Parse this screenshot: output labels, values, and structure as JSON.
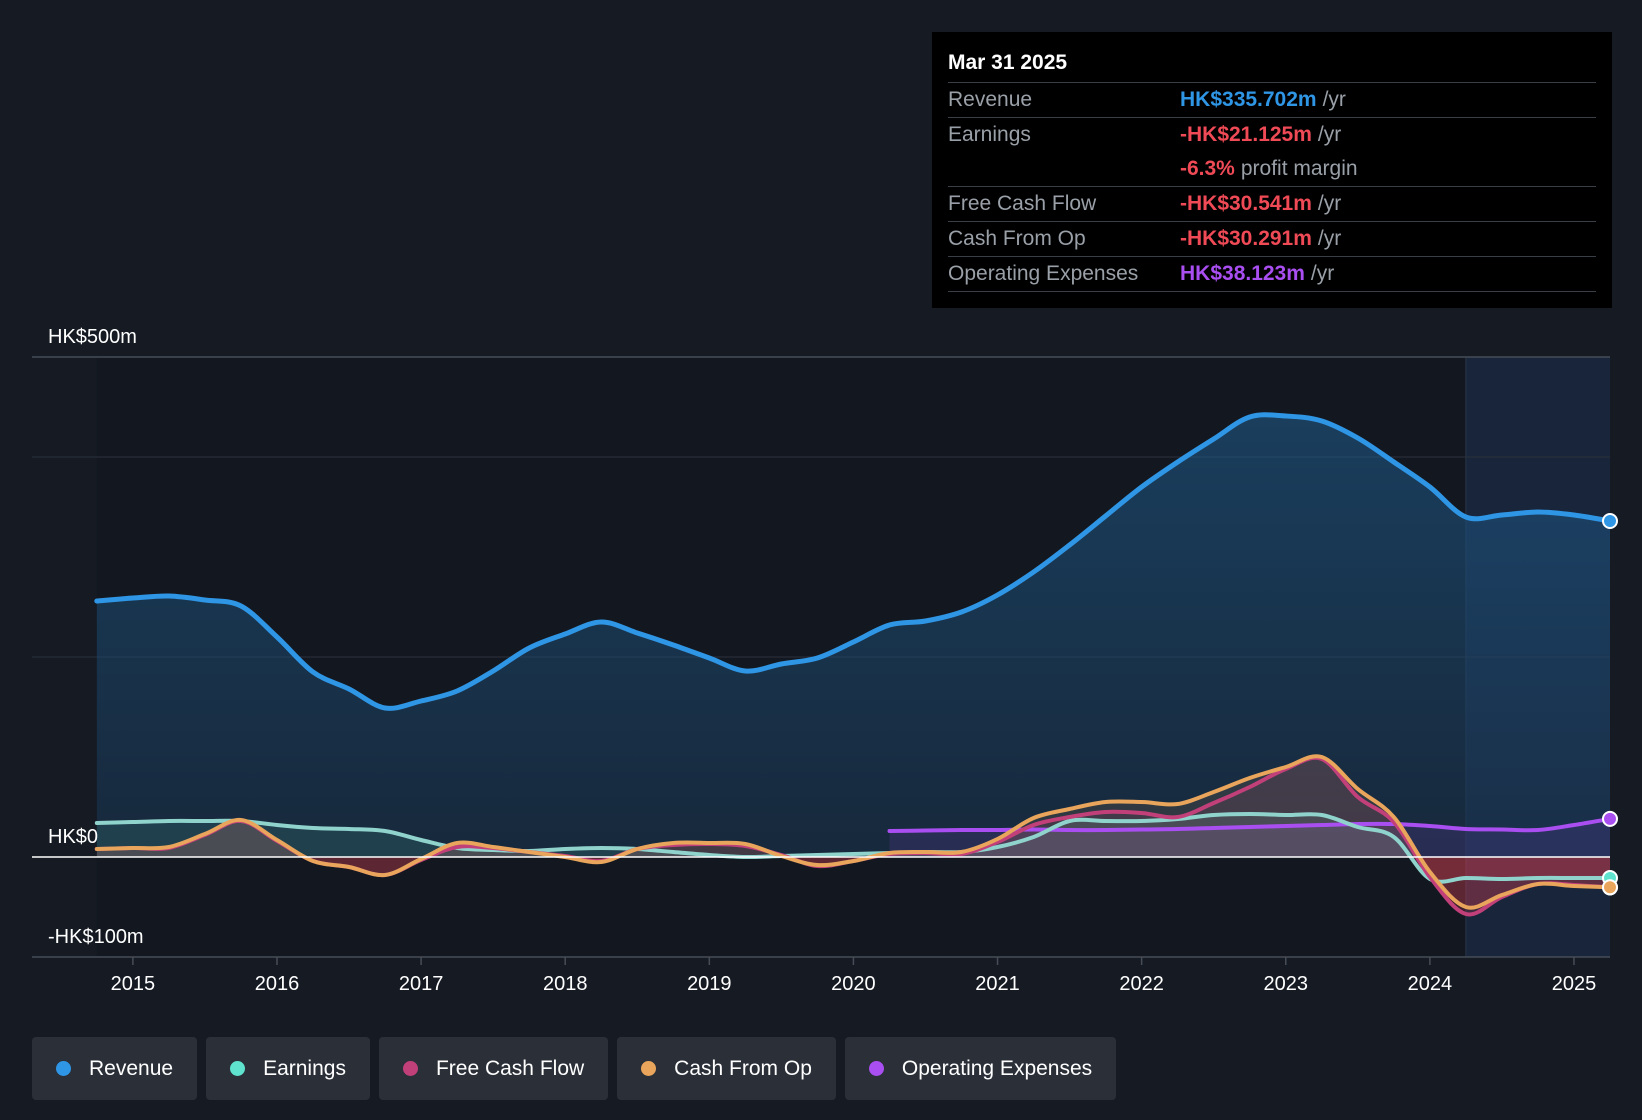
{
  "tooltip": {
    "date": "Mar 31 2025",
    "rows": [
      {
        "label": "Revenue",
        "value": "HK$335.702m",
        "unit": "/yr",
        "color": "#2f95e5"
      },
      {
        "label": "Earnings",
        "value": "-HK$21.125m",
        "unit": "/yr",
        "color": "#ef4a56"
      },
      {
        "label": "",
        "value": "-6.3%",
        "unit": "profit margin",
        "color": "#ef4a56"
      },
      {
        "label": "Free Cash Flow",
        "value": "-HK$30.541m",
        "unit": "/yr",
        "color": "#ef4a56"
      },
      {
        "label": "Cash From Op",
        "value": "-HK$30.291m",
        "unit": "/yr",
        "color": "#ef4a56"
      },
      {
        "label": "Operating Expenses",
        "value": "HK$38.123m",
        "unit": "/yr",
        "color": "#a94ef0"
      }
    ]
  },
  "legend": [
    {
      "label": "Revenue",
      "color": "#2f95e5"
    },
    {
      "label": "Earnings",
      "color": "#5fe3cf"
    },
    {
      "label": "Free Cash Flow",
      "color": "#c2407a"
    },
    {
      "label": "Cash From Op",
      "color": "#e9a55b"
    },
    {
      "label": "Operating Expenses",
      "color": "#a94ef0"
    }
  ],
  "chart_data": {
    "type": "line",
    "ylim": [
      -100,
      500
    ],
    "y_tick_labels": [
      {
        "value": 500,
        "label": "HK$500m"
      },
      {
        "value": 0,
        "label": "HK$0"
      },
      {
        "value": -100,
        "label": "-HK$100m"
      }
    ],
    "gridlines": [
      500,
      400,
      200,
      0
    ],
    "xlim": [
      2014.3,
      2025.25
    ],
    "x_ticks": [
      2015,
      2016,
      2017,
      2018,
      2019,
      2020,
      2021,
      2022,
      2023,
      2024,
      2025
    ],
    "x_tick_labels": [
      "2015",
      "2016",
      "2017",
      "2018",
      "2019",
      "2020",
      "2021",
      "2022",
      "2023",
      "2024",
      "2025"
    ],
    "highlight_start": 2024.25,
    "series": [
      {
        "name": "Revenue",
        "color": "#2f95e5",
        "x": [
          2014.75,
          2015.0,
          2015.25,
          2015.5,
          2015.75,
          2016.0,
          2016.25,
          2016.5,
          2016.75,
          2017.0,
          2017.25,
          2017.5,
          2017.75,
          2018.0,
          2018.25,
          2018.5,
          2018.75,
          2019.0,
          2019.25,
          2019.5,
          2019.75,
          2020.0,
          2020.25,
          2020.5,
          2020.75,
          2021.0,
          2021.25,
          2021.5,
          2021.75,
          2022.0,
          2022.25,
          2022.5,
          2022.75,
          2023.0,
          2023.25,
          2023.5,
          2023.75,
          2024.0,
          2024.25,
          2024.5,
          2024.75,
          2025.0,
          2025.25
        ],
        "values": [
          256,
          259,
          261,
          257,
          251,
          220,
          185,
          168,
          149,
          156,
          166,
          186,
          209,
          223,
          235,
          224,
          212,
          199,
          186,
          193,
          199,
          215,
          232,
          236,
          245,
          262,
          285,
          312,
          341,
          370,
          395,
          418,
          440,
          441,
          436,
          419,
          395,
          370,
          340,
          342,
          345,
          342,
          336
        ]
      },
      {
        "name": "Earnings",
        "color": "#5fe3cf",
        "x": [
          2014.75,
          2015.0,
          2015.25,
          2015.5,
          2015.75,
          2016.0,
          2016.25,
          2016.5,
          2016.75,
          2017.0,
          2017.25,
          2017.5,
          2017.75,
          2018.0,
          2018.25,
          2018.5,
          2018.75,
          2019.0,
          2019.25,
          2019.5,
          2019.75,
          2020.0,
          2020.25,
          2020.5,
          2020.75,
          2021.0,
          2021.25,
          2021.5,
          2021.75,
          2022.0,
          2022.25,
          2022.5,
          2022.75,
          2023.0,
          2023.25,
          2023.5,
          2023.75,
          2024.0,
          2024.25,
          2024.5,
          2024.75,
          2025.0,
          2025.25
        ],
        "values": [
          34,
          35,
          36,
          36,
          36,
          32,
          29,
          28,
          26,
          17,
          9,
          7,
          6,
          8,
          9,
          8,
          5,
          2,
          0,
          1,
          2,
          3,
          4,
          5,
          5,
          10,
          20,
          36,
          36,
          36,
          38,
          42,
          43,
          42,
          42,
          30,
          20,
          -22,
          -21,
          -22,
          -21,
          -21,
          -21
        ]
      },
      {
        "name": "Free Cash Flow",
        "color": "#c2407a",
        "x": [
          2014.75,
          2015.0,
          2015.25,
          2015.5,
          2015.75,
          2016.0,
          2016.25,
          2016.5,
          2016.75,
          2017.0,
          2017.25,
          2017.5,
          2017.75,
          2018.0,
          2018.25,
          2018.5,
          2018.75,
          2019.0,
          2019.25,
          2019.5,
          2019.75,
          2020.0,
          2020.25,
          2020.5,
          2020.75,
          2021.0,
          2021.25,
          2021.5,
          2021.75,
          2022.0,
          2022.25,
          2022.5,
          2022.75,
          2023.0,
          2023.25,
          2023.5,
          2023.75,
          2024.0,
          2024.25,
          2024.5,
          2024.75,
          2025.0,
          2025.25
        ],
        "values": [
          8,
          9,
          9,
          22,
          36,
          16,
          -4,
          -10,
          -18,
          -3,
          10,
          9,
          5,
          1,
          -4,
          8,
          12,
          13,
          11,
          2,
          -9,
          -4,
          3,
          4,
          3,
          15,
          32,
          40,
          45,
          44,
          40,
          54,
          70,
          88,
          98,
          60,
          35,
          -20,
          -57,
          -40,
          -27,
          -28,
          -30.5
        ]
      },
      {
        "name": "Cash From Op",
        "color": "#e9a55b",
        "x": [
          2014.75,
          2015.0,
          2015.25,
          2015.5,
          2015.75,
          2016.0,
          2016.25,
          2016.5,
          2016.75,
          2017.0,
          2017.25,
          2017.5,
          2017.75,
          2018.0,
          2018.25,
          2018.5,
          2018.75,
          2019.0,
          2019.25,
          2019.5,
          2019.75,
          2020.0,
          2020.25,
          2020.5,
          2020.75,
          2021.0,
          2021.25,
          2021.5,
          2021.75,
          2022.0,
          2022.25,
          2022.5,
          2022.75,
          2023.0,
          2023.25,
          2023.5,
          2023.75,
          2024.0,
          2024.25,
          2024.5,
          2024.75,
          2025.0,
          2025.25
        ],
        "values": [
          8,
          9,
          10,
          23,
          37,
          17,
          -4,
          -10,
          -18,
          -2,
          14,
          10,
          5,
          0,
          -5,
          8,
          14,
          14,
          13,
          1,
          -8,
          -4,
          4,
          5,
          5,
          18,
          39,
          48,
          55,
          55,
          53,
          65,
          79,
          90,
          100,
          68,
          40,
          -15,
          -50,
          -38,
          -27,
          -29,
          -30.3
        ]
      },
      {
        "name": "Operating Expenses",
        "color": "#a94ef0",
        "x": [
          2020.25,
          2020.5,
          2020.75,
          2021.0,
          2021.25,
          2021.5,
          2021.75,
          2022.0,
          2022.25,
          2022.5,
          2022.75,
          2023.0,
          2023.25,
          2023.5,
          2023.75,
          2024.0,
          2024.25,
          2024.5,
          2024.75,
          2025.0,
          2025.25
        ],
        "values": [
          26,
          26.5,
          27,
          27,
          27.5,
          27,
          27,
          27.5,
          28,
          29,
          30,
          31,
          32,
          33,
          33,
          31,
          28,
          27.5,
          27,
          32,
          38.1
        ]
      }
    ]
  }
}
